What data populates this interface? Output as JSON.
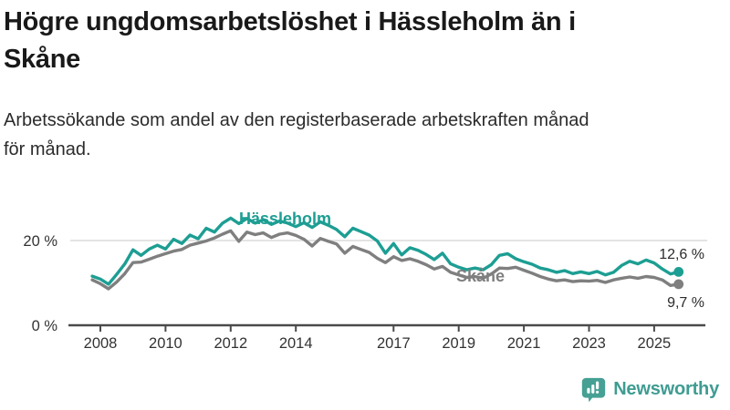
{
  "title": {
    "line1": "Högre ungdomsarbetslöshet i Hässleholm än i",
    "line2": "Skåne"
  },
  "subtitle": {
    "line1": "Arbetssökande som andel av den registerbaserade arbetskraften månad",
    "line2": "för månad."
  },
  "colors": {
    "hassleholm": "#1d9e93",
    "skane": "#7f7f7f",
    "axis": "#4a4a4a",
    "tick_text": "#333333",
    "grid": "#dcdcdc",
    "value_text": "#2b2b2b",
    "logo": "#3f9c92",
    "logo_icon": "#46a094"
  },
  "chart_data": {
    "type": "line",
    "unit": "%",
    "x": [
      2007.75,
      2008.0,
      2008.25,
      2008.5,
      2008.75,
      2009.0,
      2009.25,
      2009.5,
      2009.75,
      2010.0,
      2010.25,
      2010.5,
      2010.75,
      2011.0,
      2011.25,
      2011.5,
      2011.75,
      2012.0,
      2012.25,
      2012.5,
      2012.75,
      2013.0,
      2013.25,
      2013.5,
      2013.75,
      2014.0,
      2014.25,
      2014.5,
      2014.75,
      2015.0,
      2015.25,
      2015.5,
      2015.75,
      2016.0,
      2016.25,
      2016.5,
      2016.75,
      2017.0,
      2017.25,
      2017.5,
      2017.75,
      2018.0,
      2018.25,
      2018.5,
      2018.75,
      2019.0,
      2019.25,
      2019.5,
      2019.75,
      2020.0,
      2020.25,
      2020.5,
      2020.75,
      2021.0,
      2021.25,
      2021.5,
      2021.75,
      2022.0,
      2022.25,
      2022.5,
      2022.75,
      2023.0,
      2023.25,
      2023.5,
      2023.75,
      2024.0,
      2024.25,
      2024.5,
      2024.75,
      2025.0,
      2025.25,
      2025.5,
      2025.75
    ],
    "series": [
      {
        "name": "Hässleholm",
        "color": "#1d9e93",
        "end_label": "12,6 %",
        "values": [
          11.6,
          10.9,
          9.7,
          12.0,
          14.5,
          17.8,
          16.5,
          18.0,
          18.9,
          18.0,
          20.3,
          19.3,
          21.3,
          20.4,
          22.9,
          22.0,
          24.1,
          25.3,
          24.0,
          25.2,
          24.1,
          24.9,
          23.8,
          24.6,
          24.1,
          23.3,
          24.2,
          23.1,
          24.4,
          23.6,
          22.6,
          20.9,
          22.9,
          22.1,
          21.3,
          19.9,
          17.0,
          19.3,
          16.6,
          18.3,
          17.7,
          16.7,
          15.5,
          17.0,
          14.5,
          13.7,
          13.1,
          13.5,
          13.1,
          14.3,
          16.5,
          16.9,
          15.7,
          15.0,
          14.4,
          13.5,
          13.1,
          12.5,
          12.9,
          12.2,
          12.6,
          12.2,
          12.7,
          11.9,
          12.5,
          14.1,
          15.1,
          14.5,
          15.4,
          14.7,
          13.3,
          12.1,
          12.6
        ]
      },
      {
        "name": "Skåne",
        "color": "#7f7f7f",
        "end_label": "9,7 %",
        "values": [
          10.7,
          9.8,
          8.6,
          10.2,
          12.2,
          14.8,
          14.9,
          15.6,
          16.3,
          16.9,
          17.5,
          17.9,
          18.9,
          19.4,
          19.9,
          20.6,
          21.5,
          22.3,
          19.8,
          22.0,
          21.4,
          21.8,
          20.7,
          21.5,
          21.8,
          21.2,
          20.3,
          18.7,
          20.5,
          19.8,
          19.2,
          17.0,
          18.6,
          17.9,
          17.2,
          15.8,
          14.8,
          16.2,
          15.3,
          15.7,
          15.1,
          14.3,
          13.3,
          13.9,
          12.5,
          11.9,
          11.3,
          11.5,
          11.1,
          12.1,
          13.5,
          13.4,
          13.7,
          13.0,
          12.3,
          11.5,
          10.9,
          10.5,
          10.7,
          10.3,
          10.5,
          10.4,
          10.6,
          10.1,
          10.7,
          11.1,
          11.4,
          11.1,
          11.5,
          11.3,
          10.7,
          9.4,
          9.7
        ]
      }
    ],
    "x_ticks": [
      2008,
      2010,
      2012,
      2014,
      2017,
      2019,
      2021,
      2023,
      2025
    ],
    "y_ticks": [
      {
        "value": 0,
        "label": "0 %"
      },
      {
        "value": 20,
        "label": "20 %"
      }
    ],
    "ylim": [
      0,
      28
    ],
    "xlim": [
      2007.6,
      2026.3
    ],
    "grid": "horizontal line at 20% only",
    "legend_position": "inline labels on lines"
  },
  "logo": {
    "text": "Newsworthy"
  }
}
